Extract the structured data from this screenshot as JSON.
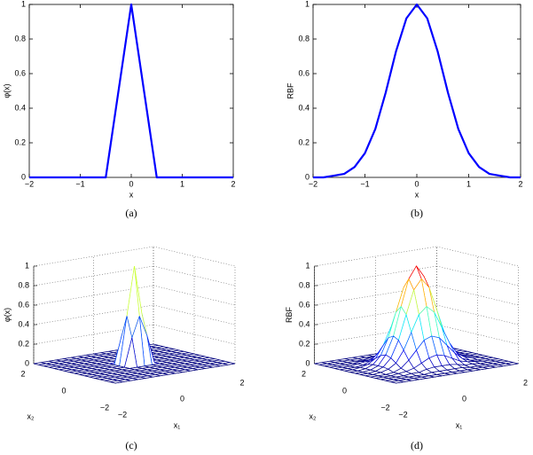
{
  "chart_data": [
    {
      "type": "line",
      "caption": "(a)",
      "xlabel": "x",
      "ylabel": "φ(x)",
      "color": "#0000ff",
      "x": [
        -2,
        -1,
        -0.5,
        0,
        0.5,
        1,
        2
      ],
      "values": [
        0,
        0,
        0,
        1,
        0,
        0,
        0
      ],
      "xlim": [
        -2,
        2
      ],
      "ylim": [
        0,
        1
      ],
      "xticks": [
        {
          "value": -2,
          "label": "−2"
        },
        {
          "value": -1,
          "label": "−1"
        },
        0,
        1,
        2
      ],
      "yticks": [
        0,
        0.2,
        0.4,
        0.6,
        0.8,
        1
      ]
    },
    {
      "type": "line",
      "caption": "(b)",
      "xlabel": "x",
      "ylabel": "RBF",
      "color": "#0000ff",
      "x": [
        -2,
        -1.8,
        -1.6,
        -1.4,
        -1.2,
        -1,
        -0.8,
        -0.6,
        -0.4,
        -0.2,
        0,
        0.2,
        0.4,
        0.6,
        0.8,
        1,
        1.2,
        1.4,
        1.6,
        1.8,
        2
      ],
      "values": [
        0,
        0,
        0.01,
        0.02,
        0.06,
        0.14,
        0.28,
        0.49,
        0.73,
        0.92,
        1,
        0.92,
        0.73,
        0.49,
        0.28,
        0.14,
        0.06,
        0.02,
        0.01,
        0,
        0
      ],
      "xlim": [
        -2,
        2
      ],
      "ylim": [
        0,
        1
      ],
      "xticks": [
        {
          "value": -2,
          "label": "−2"
        },
        {
          "value": -1,
          "label": "−1"
        },
        0,
        1,
        2
      ],
      "yticks": [
        0,
        0.2,
        0.4,
        0.6,
        0.8,
        1
      ]
    },
    {
      "type": "surface",
      "caption": "(c)",
      "xlabel": "x₁",
      "ylabel": "x₂",
      "zlabel": "φ(x)",
      "colormap": "jet",
      "x": [
        -2,
        -1.75,
        -1.5,
        -1.25,
        -1,
        -0.75,
        -0.5,
        -0.25,
        0,
        0.25,
        0.5,
        0.75,
        1,
        1.25,
        1.5,
        1.75,
        2
      ],
      "y": [
        -2,
        -1.75,
        -1.5,
        -1.25,
        -1,
        -0.75,
        -0.5,
        -0.25,
        0,
        0.25,
        0.5,
        0.75,
        1,
        1.25,
        1.5,
        1.75,
        2
      ],
      "z": [
        [
          0,
          0,
          0,
          0,
          0,
          0,
          0,
          0,
          0,
          0,
          0,
          0,
          0,
          0,
          0,
          0,
          0
        ],
        [
          0,
          0,
          0,
          0,
          0,
          0,
          0,
          0,
          0,
          0,
          0,
          0,
          0,
          0,
          0,
          0,
          0
        ],
        [
          0,
          0,
          0,
          0,
          0,
          0,
          0,
          0,
          0,
          0,
          0,
          0,
          0,
          0,
          0,
          0,
          0
        ],
        [
          0,
          0,
          0,
          0,
          0,
          0,
          0,
          0,
          0,
          0,
          0,
          0,
          0,
          0,
          0,
          0,
          0
        ],
        [
          0,
          0,
          0,
          0,
          0,
          0,
          0,
          0,
          0,
          0,
          0,
          0,
          0,
          0,
          0,
          0,
          0
        ],
        [
          0,
          0,
          0,
          0,
          0,
          0,
          0,
          0,
          0,
          0,
          0,
          0,
          0,
          0,
          0,
          0,
          0
        ],
        [
          0,
          0,
          0,
          0,
          0,
          0,
          0,
          0,
          0,
          0,
          0,
          0,
          0,
          0,
          0,
          0,
          0
        ],
        [
          0,
          0,
          0,
          0,
          0,
          0,
          0,
          0.29,
          0.5,
          0.29,
          0,
          0,
          0,
          0,
          0,
          0,
          0
        ],
        [
          0,
          0,
          0,
          0,
          0,
          0,
          0,
          0.5,
          1,
          0.5,
          0,
          0,
          0,
          0,
          0,
          0,
          0
        ],
        [
          0,
          0,
          0,
          0,
          0,
          0,
          0,
          0.29,
          0.5,
          0.29,
          0,
          0,
          0,
          0,
          0,
          0,
          0
        ],
        [
          0,
          0,
          0,
          0,
          0,
          0,
          0,
          0,
          0,
          0,
          0,
          0,
          0,
          0,
          0,
          0,
          0
        ],
        [
          0,
          0,
          0,
          0,
          0,
          0,
          0,
          0,
          0,
          0,
          0,
          0,
          0,
          0,
          0,
          0,
          0
        ],
        [
          0,
          0,
          0,
          0,
          0,
          0,
          0,
          0,
          0,
          0,
          0,
          0,
          0,
          0,
          0,
          0,
          0
        ],
        [
          0,
          0,
          0,
          0,
          0,
          0,
          0,
          0,
          0,
          0,
          0,
          0,
          0,
          0,
          0,
          0,
          0
        ],
        [
          0,
          0,
          0,
          0,
          0,
          0,
          0,
          0,
          0,
          0,
          0,
          0,
          0,
          0,
          0,
          0,
          0
        ],
        [
          0,
          0,
          0,
          0,
          0,
          0,
          0,
          0,
          0,
          0,
          0,
          0,
          0,
          0,
          0,
          0,
          0
        ],
        [
          0,
          0,
          0,
          0,
          0,
          0,
          0,
          0,
          0,
          0,
          0,
          0,
          0,
          0,
          0,
          0,
          0
        ]
      ],
      "xlim": [
        -2,
        2
      ],
      "ylim": [
        -2,
        2
      ],
      "zlim": [
        0,
        1
      ],
      "xticks": [
        {
          "value": -2,
          "label": "−2"
        },
        0,
        2
      ],
      "yticks": [
        {
          "value": -2,
          "label": "−2"
        },
        0,
        2
      ],
      "zticks": [
        0,
        0.2,
        0.4,
        0.6,
        0.8,
        1
      ]
    },
    {
      "type": "surface",
      "caption": "(d)",
      "xlabel": "x₁",
      "ylabel": "x₂",
      "zlabel": "RBF",
      "colormap": "jet",
      "x": [
        -2,
        -1.75,
        -1.5,
        -1.25,
        -1,
        -0.75,
        -0.5,
        -0.25,
        0,
        0.25,
        0.5,
        0.75,
        1,
        1.25,
        1.5,
        1.75,
        2
      ],
      "y": [
        -2,
        -1.75,
        -1.5,
        -1.25,
        -1,
        -0.75,
        -0.5,
        -0.25,
        0,
        0.25,
        0.5,
        0.75,
        1,
        1.25,
        1.5,
        1.75,
        2
      ],
      "z": [
        [
          0,
          0,
          0,
          0,
          0,
          0,
          0,
          0,
          0,
          0,
          0,
          0,
          0,
          0,
          0,
          0,
          0
        ],
        [
          0,
          0,
          0,
          0,
          0,
          0,
          0,
          0,
          0,
          0,
          0,
          0,
          0,
          0,
          0,
          0,
          0
        ],
        [
          0,
          0,
          0,
          0,
          0,
          0,
          0.01,
          0.01,
          0.01,
          0.01,
          0.01,
          0,
          0,
          0,
          0,
          0,
          0
        ],
        [
          0,
          0,
          0,
          0,
          0.01,
          0.01,
          0.03,
          0.04,
          0.04,
          0.04,
          0.03,
          0.01,
          0.01,
          0,
          0,
          0,
          0
        ],
        [
          0,
          0,
          0,
          0.01,
          0.02,
          0.04,
          0.08,
          0.12,
          0.14,
          0.12,
          0.08,
          0.04,
          0.02,
          0.01,
          0,
          0,
          0
        ],
        [
          0,
          0,
          0,
          0.01,
          0.04,
          0.11,
          0.2,
          0.29,
          0.32,
          0.29,
          0.2,
          0.11,
          0.04,
          0.01,
          0,
          0,
          0
        ],
        [
          0,
          0,
          0.01,
          0.03,
          0.08,
          0.2,
          0.37,
          0.54,
          0.61,
          0.54,
          0.37,
          0.2,
          0.08,
          0.03,
          0.01,
          0,
          0
        ],
        [
          0,
          0,
          0.01,
          0.04,
          0.12,
          0.29,
          0.54,
          0.78,
          0.88,
          0.78,
          0.54,
          0.29,
          0.12,
          0.04,
          0.01,
          0,
          0
        ],
        [
          0,
          0,
          0.01,
          0.04,
          0.14,
          0.32,
          0.61,
          0.88,
          1,
          0.88,
          0.61,
          0.32,
          0.14,
          0.04,
          0.01,
          0,
          0
        ],
        [
          0,
          0,
          0.01,
          0.04,
          0.12,
          0.29,
          0.54,
          0.78,
          0.88,
          0.78,
          0.54,
          0.29,
          0.12,
          0.04,
          0.01,
          0,
          0
        ],
        [
          0,
          0,
          0.01,
          0.03,
          0.08,
          0.2,
          0.37,
          0.54,
          0.61,
          0.54,
          0.37,
          0.2,
          0.08,
          0.03,
          0.01,
          0,
          0
        ],
        [
          0,
          0,
          0,
          0.01,
          0.04,
          0.11,
          0.2,
          0.29,
          0.32,
          0.29,
          0.2,
          0.11,
          0.04,
          0.01,
          0,
          0,
          0
        ],
        [
          0,
          0,
          0,
          0.01,
          0.02,
          0.04,
          0.08,
          0.12,
          0.14,
          0.12,
          0.08,
          0.04,
          0.02,
          0.01,
          0,
          0,
          0
        ],
        [
          0,
          0,
          0,
          0,
          0.01,
          0.01,
          0.03,
          0.04,
          0.04,
          0.04,
          0.03,
          0.01,
          0.01,
          0,
          0,
          0,
          0
        ],
        [
          0,
          0,
          0,
          0,
          0,
          0,
          0.01,
          0.01,
          0.01,
          0.01,
          0.01,
          0,
          0,
          0,
          0,
          0,
          0
        ],
        [
          0,
          0,
          0,
          0,
          0,
          0,
          0,
          0,
          0,
          0,
          0,
          0,
          0,
          0,
          0,
          0,
          0
        ],
        [
          0,
          0,
          0,
          0,
          0,
          0,
          0,
          0,
          0,
          0,
          0,
          0,
          0,
          0,
          0,
          0,
          0
        ]
      ],
      "xlim": [
        -2,
        2
      ],
      "ylim": [
        -2,
        2
      ],
      "zlim": [
        0,
        1
      ],
      "xticks": [
        {
          "value": -2,
          "label": "−2"
        },
        0,
        2
      ],
      "yticks": [
        {
          "value": -2,
          "label": "−2"
        },
        0,
        2
      ],
      "zticks": [
        0,
        0.2,
        0.4,
        0.6,
        0.8,
        1
      ]
    }
  ]
}
